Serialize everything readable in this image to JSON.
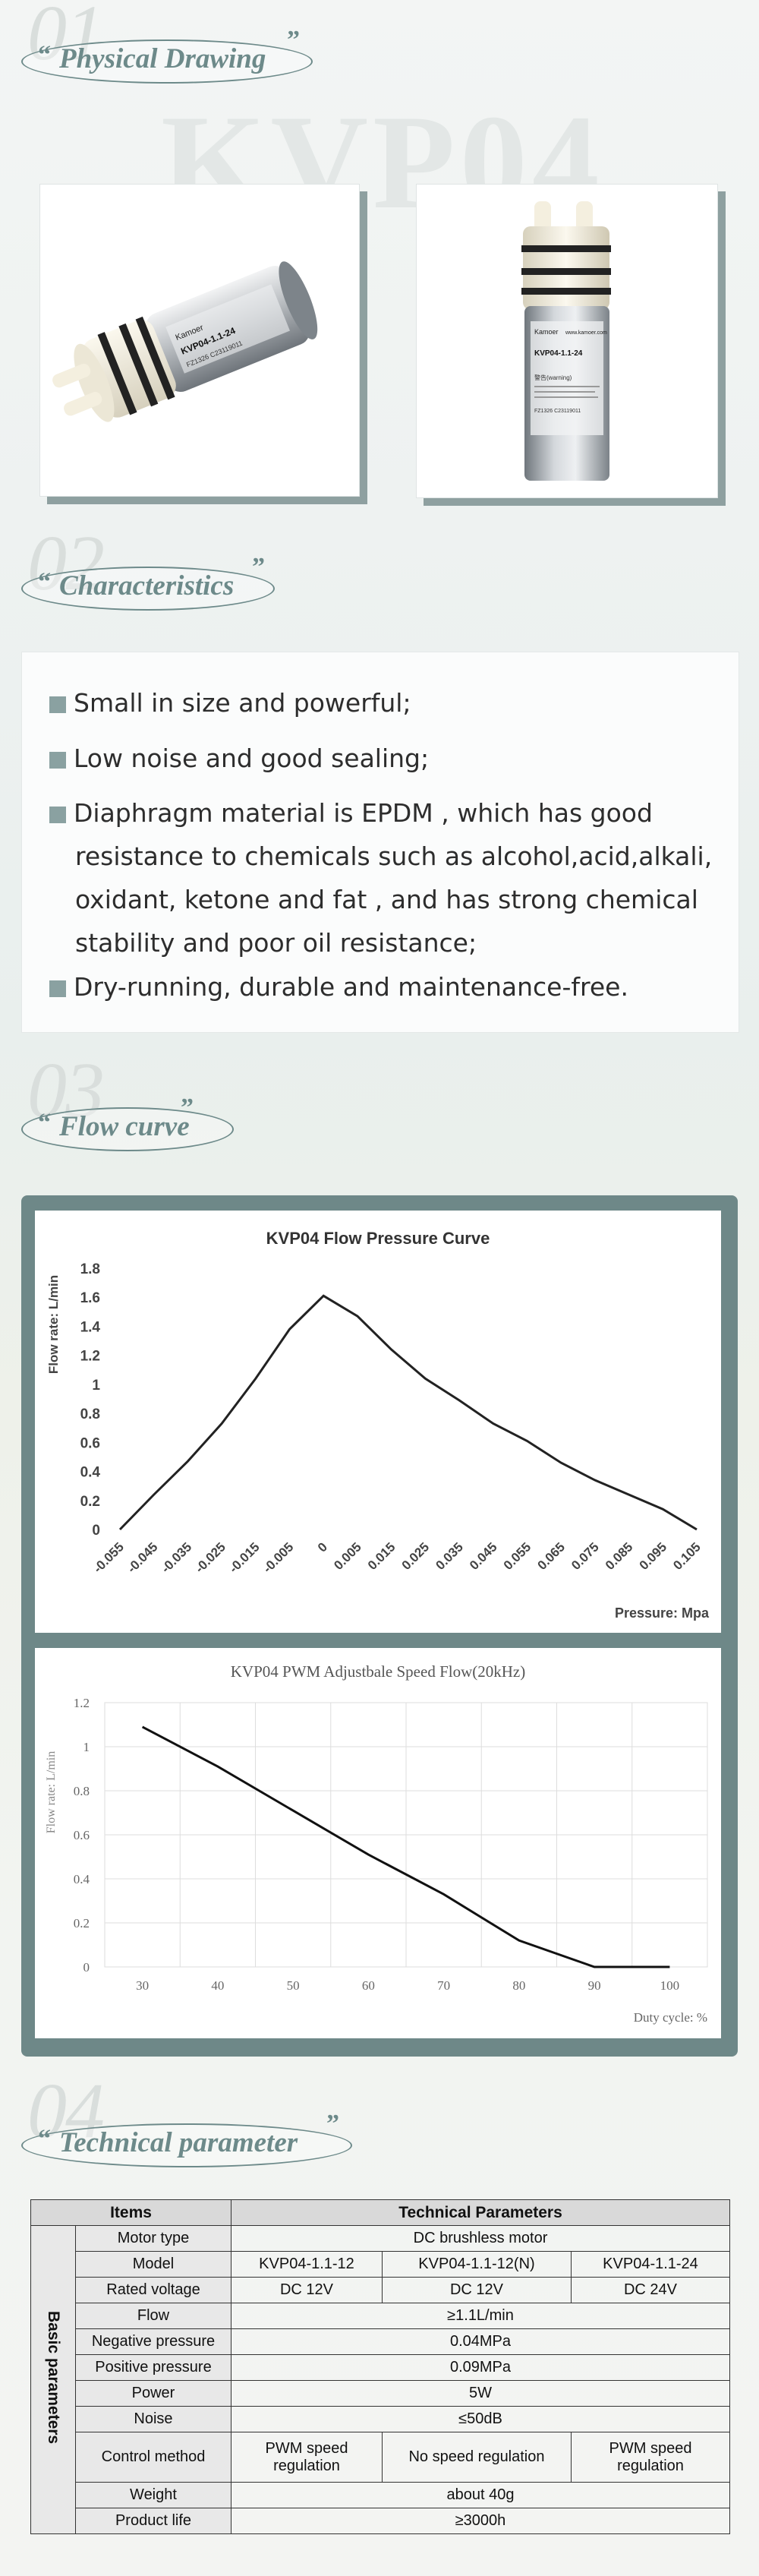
{
  "sections": {
    "s1": {
      "num": "01",
      "title": "Physical Drawing",
      "watermark": "KVP04"
    },
    "s2": {
      "num": "02",
      "title": "Characteristics"
    },
    "s3": {
      "num": "03",
      "title": "Flow curve"
    },
    "s4": {
      "num": "04",
      "title": "Technical parameter"
    }
  },
  "quotes": {
    "open": "“",
    "close": "”"
  },
  "product_labels": {
    "brand": "Kamoer",
    "model_a": "KVP04-1.1-24",
    "model_b": "KVP04-1.1-24",
    "website": "www.kamoer.com",
    "warning": "警告(warning)",
    "serial": "FZ1326 C23119011"
  },
  "characteristics": {
    "items": [
      {
        "lines": [
          "Small in size and powerful;"
        ]
      },
      {
        "lines": [
          "Low noise and good sealing;"
        ]
      },
      {
        "lines": [
          "Diaphragm material is EPDM , which has good",
          "resistance to chemicals such as alcohol,acid,alkali,",
          "oxidant, ketone and fat , and has strong chemical",
          "stability and poor oil resistance;"
        ]
      },
      {
        "lines": [
          "Dry-running, durable and maintenance-free."
        ]
      }
    ]
  },
  "chart_data": [
    {
      "type": "line",
      "title": "KVP04 Flow Pressure Curve",
      "ylabel": "Flow rate: L/min",
      "xlabel": "Pressure: Mpa",
      "x_ticks": [
        "-0.055",
        "-0.045",
        "-0.035",
        "-0.025",
        "-0.015",
        "-0.005",
        "0",
        "0.005",
        "0.015",
        "0.025",
        "0.035",
        "0.045",
        "0.055",
        "0.065",
        "0.075",
        "0.085",
        "0.095",
        "0.105"
      ],
      "y_ticks": [
        "1.8",
        "1.6",
        "1.4",
        "1.2",
        "1",
        "0.8",
        "0.6",
        "0.4",
        "0.2",
        "0"
      ],
      "ylim": [
        0,
        1.8
      ],
      "series": [
        {
          "values": [
            0,
            0.24,
            0.47,
            0.73,
            1.04,
            1.38,
            1.61,
            1.47,
            1.24,
            1.04,
            0.89,
            0.73,
            0.61,
            0.46,
            0.34,
            0.24,
            0.14,
            0
          ]
        }
      ],
      "grid": false
    },
    {
      "type": "line",
      "title": "KVP04 PWM Adjustbale Speed Flow(20kHz)",
      "ylabel": "Flow rate: L/min",
      "xlabel": "Duty cycle: %",
      "x": [
        30,
        40,
        50,
        60,
        70,
        80,
        90,
        100
      ],
      "x_ticks": [
        "30",
        "40",
        "50",
        "60",
        "70",
        "80",
        "90",
        "100"
      ],
      "y_ticks": [
        "1.2",
        "1",
        "0.8",
        "0.6",
        "0.4",
        "0.2",
        "0"
      ],
      "xlim": [
        25,
        105
      ],
      "ylim": [
        0,
        1.2
      ],
      "series": [
        {
          "values": [
            1.09,
            0.91,
            0.71,
            0.51,
            0.33,
            0.12,
            0,
            0
          ]
        }
      ],
      "grid": true
    }
  ],
  "table": {
    "header": {
      "items": "Items",
      "params": "Technical Parameters"
    },
    "side_label": "Basic parameters",
    "rows": {
      "motor_type": {
        "label": "Motor type",
        "value": "DC brushless motor"
      },
      "model": {
        "label": "Model",
        "v1": "KVP04-1.1-12",
        "v2": "KVP04-1.1-12(N)",
        "v3": "KVP04-1.1-24"
      },
      "rated_voltage": {
        "label": "Rated voltage",
        "v1": "DC 12V",
        "v2": "DC 12V",
        "v3": "DC 24V"
      },
      "flow": {
        "label": "Flow",
        "value": "≥1.1L/min"
      },
      "neg_pressure": {
        "label": "Negative pressure",
        "value": "0.04MPa"
      },
      "pos_pressure": {
        "label": "Positive pressure",
        "value": "0.09MPa"
      },
      "power": {
        "label": "Power",
        "value": "5W"
      },
      "noise": {
        "label": "Noise",
        "value": "≤50dB"
      },
      "control": {
        "label": "Control method",
        "v1": "PWM speed regulation",
        "v2": "No speed regulation",
        "v3": "PWM speed regulation"
      },
      "weight": {
        "label": "Weight",
        "value": "about 40g"
      },
      "life": {
        "label": "Product life",
        "value": "≥3000h"
      }
    }
  }
}
